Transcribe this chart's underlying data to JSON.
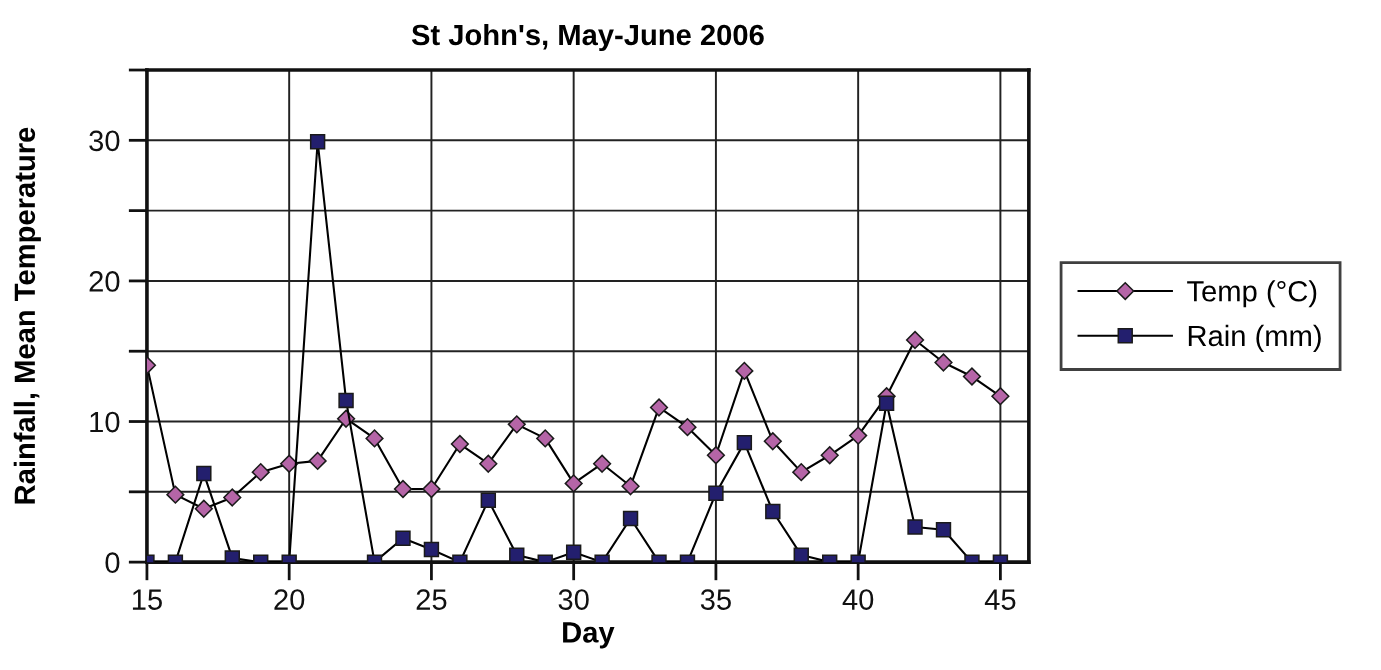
{
  "chart_data": {
    "type": "line",
    "title": "St John's, May-June 2006",
    "xlabel": "Day",
    "ylabel": "Rainfall, Mean Temperature",
    "x": [
      15,
      16,
      17,
      18,
      19,
      20,
      21,
      22,
      23,
      24,
      25,
      26,
      27,
      28,
      29,
      30,
      31,
      32,
      33,
      34,
      35,
      36,
      37,
      38,
      39,
      40,
      41,
      42,
      43,
      44,
      45
    ],
    "series": [
      {
        "name": "Temp (°C)",
        "color": "#b565a7",
        "marker": "diamond",
        "values": [
          14.0,
          4.8,
          3.8,
          4.6,
          6.4,
          7.0,
          7.2,
          10.2,
          8.8,
          5.2,
          5.2,
          8.4,
          7.0,
          9.8,
          8.8,
          5.6,
          7.0,
          5.4,
          11.0,
          9.6,
          7.6,
          13.6,
          8.6,
          6.4,
          7.6,
          9.0,
          11.8,
          15.8,
          14.2,
          13.2,
          11.8
        ]
      },
      {
        "name": "Rain (mm)",
        "color": "#231f6e",
        "marker": "square",
        "values": [
          0,
          0,
          6.3,
          0.3,
          0,
          0,
          29.9,
          11.5,
          0,
          1.7,
          0.9,
          0,
          4.4,
          0.5,
          0,
          0.7,
          0,
          3.1,
          0,
          0,
          4.9,
          8.5,
          3.6,
          0.5,
          0,
          0,
          11.3,
          2.5,
          2.3,
          0,
          0
        ]
      }
    ],
    "xlim": [
      15,
      46
    ],
    "xticks": [
      15,
      20,
      25,
      30,
      35,
      40,
      45
    ],
    "ylim": [
      0,
      35
    ],
    "yticks": [
      0,
      {
        "value": 5,
        "label": null
      },
      10,
      {
        "value": 15,
        "label": null
      },
      20,
      {
        "value": 25,
        "label": null
      },
      30,
      {
        "value": 35,
        "label": null
      }
    ],
    "grid": true,
    "legend": "right",
    "line_style": "solid"
  }
}
